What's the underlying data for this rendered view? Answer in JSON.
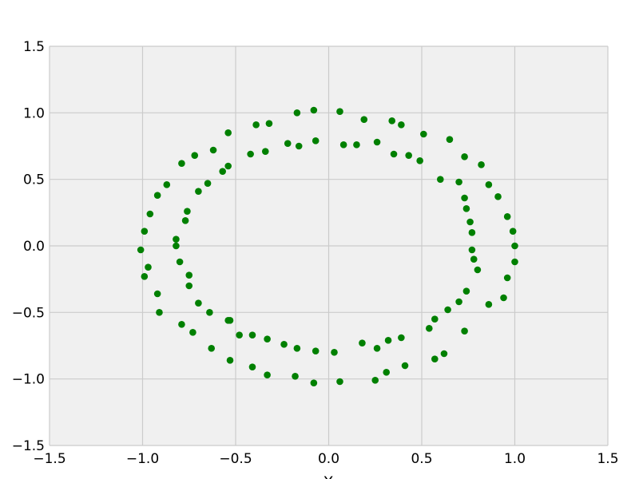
{
  "chart_data": {
    "type": "scatter",
    "title": "",
    "xlabel": "X",
    "ylabel": "",
    "xlim": [
      -1.5,
      1.5
    ],
    "ylim": [
      -1.5,
      1.5
    ],
    "xticks": [
      -1.5,
      -1.0,
      -0.5,
      0.0,
      0.5,
      1.0,
      1.5
    ],
    "yticks": [
      -1.5,
      -1.0,
      -0.5,
      0.0,
      0.5,
      1.0,
      1.5
    ],
    "xtick_labels": [
      "−1.5",
      "−1.0",
      "−0.5",
      "0.0",
      "0.5",
      "1.0",
      "1.5"
    ],
    "ytick_labels": [
      "−1.5",
      "−1.0",
      "−0.5",
      "0.0",
      "0.5",
      "1.0",
      "1.5"
    ],
    "grid": true,
    "colors": {
      "points": "#008000",
      "plot_background": "#f0f0f0",
      "grid": "#cbcbcb"
    },
    "series": [
      {
        "name": "",
        "x": [
          -0.08,
          0.06,
          -0.17,
          0.19,
          0.34,
          0.39,
          -0.39,
          -0.32,
          -0.54,
          0.51,
          0.65,
          -0.62,
          -0.72,
          -0.79,
          0.73,
          0.82,
          -0.87,
          0.86,
          -0.92,
          0.91,
          -0.96,
          0.96,
          -0.99,
          0.99,
          -1.01,
          1.0,
          -0.97,
          1.0,
          -0.99,
          -0.92,
          0.96,
          0.94,
          -0.91,
          0.86,
          -0.79,
          -0.73,
          0.73,
          -0.63,
          0.62,
          -0.53,
          -0.53,
          0.57,
          -0.41,
          -0.33,
          0.41,
          -0.18,
          0.25,
          0.31,
          -0.08,
          0.06,
          -0.07,
          0.08,
          -0.16,
          0.15,
          -0.22,
          0.26,
          -0.34,
          0.35,
          -0.42,
          0.43,
          -0.54,
          0.49,
          -0.57,
          -0.65,
          0.6,
          0.7,
          -0.7,
          -0.76,
          -0.77,
          0.73,
          0.74,
          -0.82,
          0.76,
          0.77,
          -0.82,
          0.77,
          -0.8,
          0.78,
          0.8,
          -0.75,
          -0.75,
          0.74,
          -0.7,
          0.7,
          -0.64,
          0.64,
          0.57,
          -0.54,
          -0.48,
          0.54,
          -0.41,
          -0.33,
          0.39,
          -0.24,
          0.32,
          -0.17,
          0.18,
          0.26,
          -0.07,
          0.03
        ],
        "y": [
          1.02,
          1.01,
          1.0,
          0.95,
          0.94,
          0.91,
          0.91,
          0.92,
          0.85,
          0.84,
          0.8,
          0.72,
          0.68,
          0.62,
          0.67,
          0.61,
          0.46,
          0.46,
          0.38,
          0.37,
          0.24,
          0.22,
          0.11,
          0.11,
          -0.03,
          0.0,
          -0.16,
          -0.12,
          -0.23,
          -0.36,
          -0.24,
          -0.39,
          -0.5,
          -0.44,
          -0.59,
          -0.65,
          -0.64,
          -0.77,
          -0.81,
          -0.56,
          -0.86,
          -0.85,
          -0.91,
          -0.97,
          -0.9,
          -0.98,
          -1.01,
          -0.95,
          -1.03,
          -1.02,
          0.79,
          0.76,
          0.75,
          0.76,
          0.77,
          0.78,
          0.71,
          0.69,
          0.69,
          0.68,
          0.6,
          0.64,
          0.56,
          0.47,
          0.5,
          0.48,
          0.41,
          0.26,
          0.19,
          0.36,
          0.28,
          0.05,
          0.18,
          0.1,
          0.0,
          -0.03,
          -0.12,
          -0.1,
          -0.18,
          -0.22,
          -0.3,
          -0.34,
          -0.43,
          -0.42,
          -0.5,
          -0.48,
          -0.55,
          -0.56,
          -0.67,
          -0.62,
          -0.67,
          -0.7,
          -0.69,
          -0.74,
          -0.71,
          -0.77,
          -0.73,
          -0.77,
          -0.79,
          -0.8
        ]
      }
    ]
  }
}
